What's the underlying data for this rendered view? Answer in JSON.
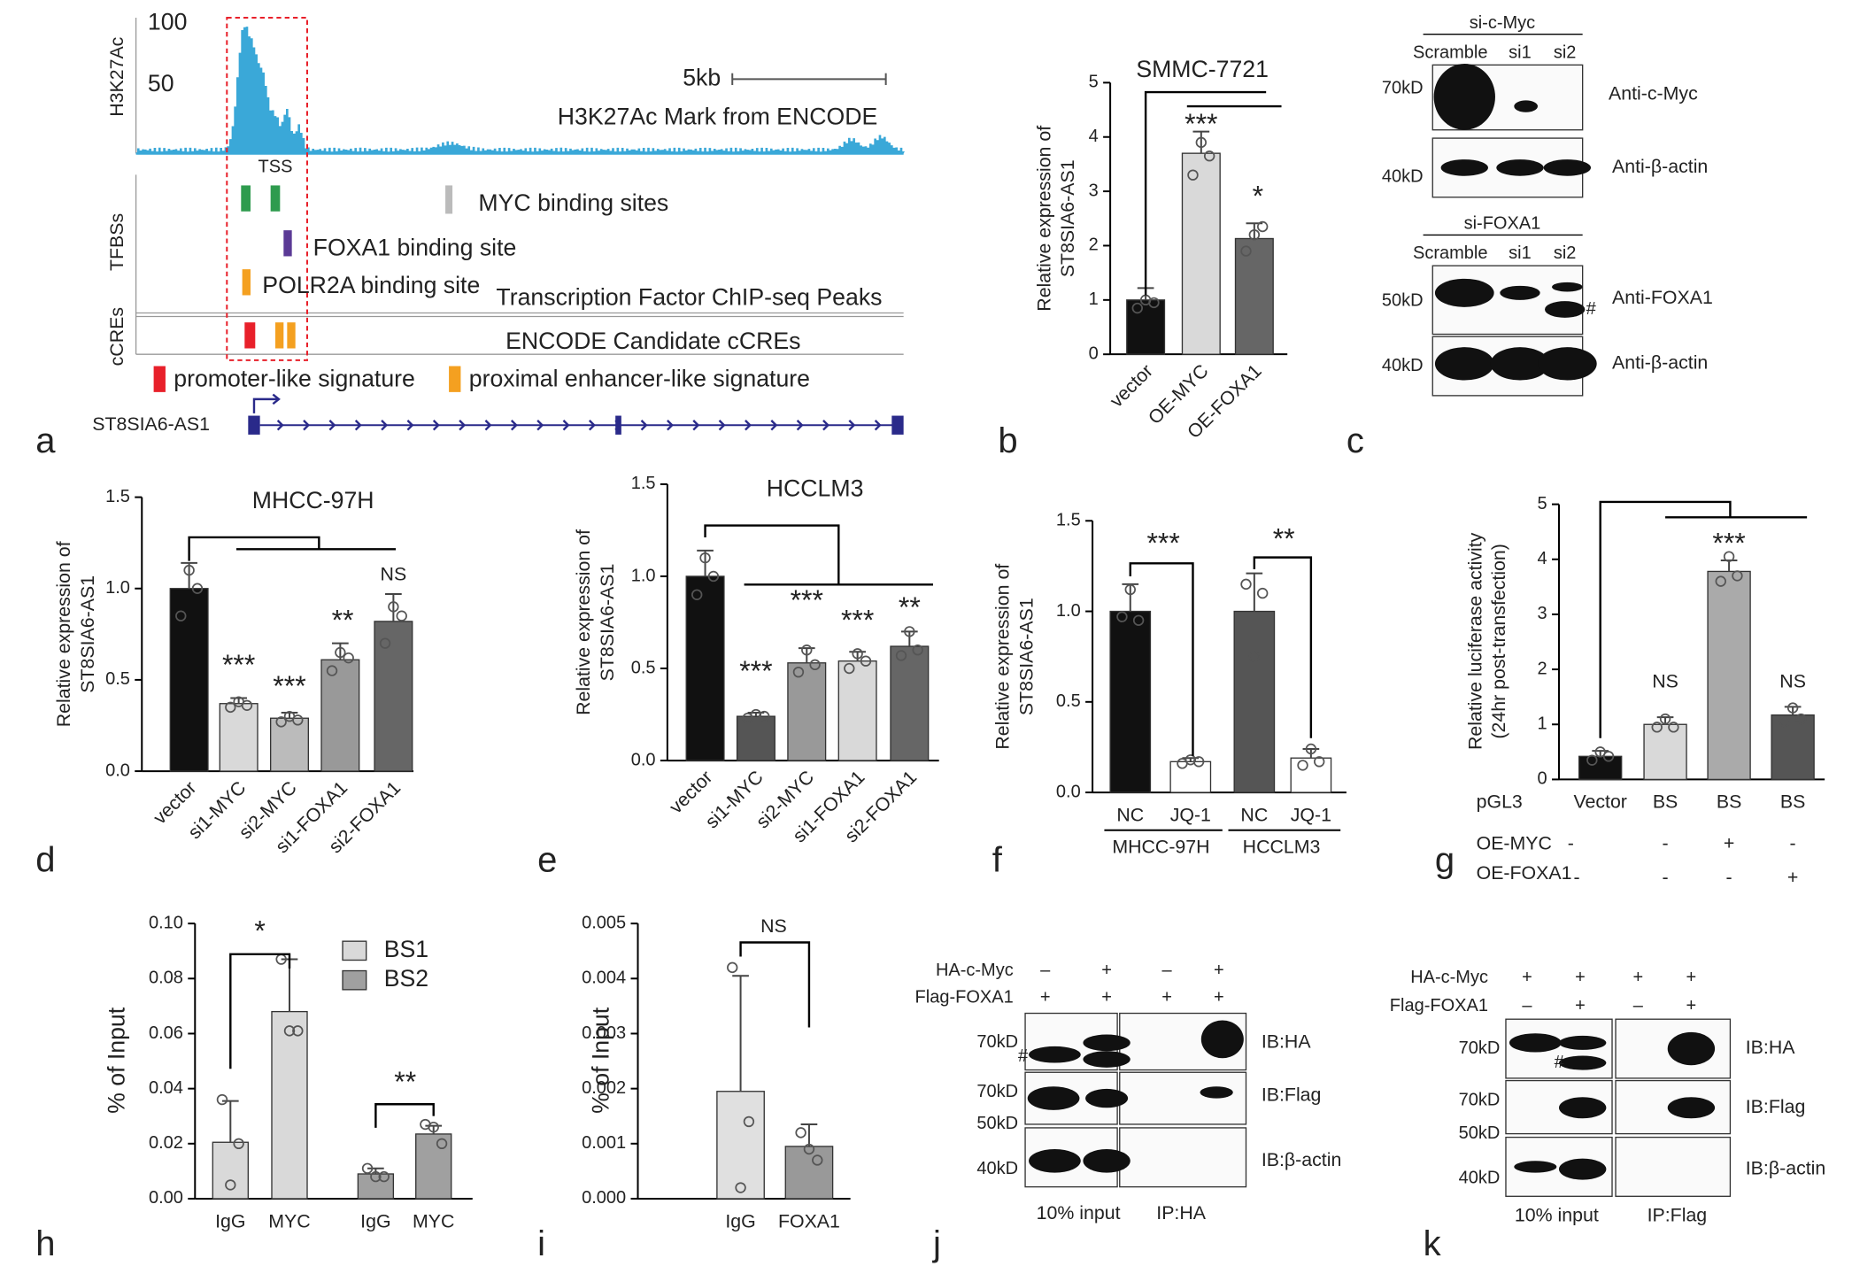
{
  "chart_data": [
    {
      "type": "bar",
      "title": "SMMC-7721",
      "y_label": [
        "Relative  expression of",
        "ST8SIA6-AS1"
      ],
      "categories": [
        "vector",
        "OE-MYC",
        "OE-FOXA1"
      ],
      "values": [
        1.0,
        3.7,
        2.13
      ],
      "errors": [
        0.22,
        0.4,
        0.28
      ],
      "points": [
        [
          0.85,
          1.0,
          0.95
        ],
        [
          3.3,
          3.9,
          3.65
        ],
        [
          1.9,
          2.2,
          2.35
        ]
      ],
      "colors": [
        "#111111",
        "#d9d9d9",
        "#666666"
      ],
      "significance": [
        null,
        "***",
        "*"
      ],
      "ylim": [
        0,
        5
      ],
      "yticks": [
        0,
        1,
        2,
        3,
        4,
        5
      ]
    },
    {
      "type": "bar",
      "title": "MHCC-97H",
      "y_label": [
        "Relative  expression of",
        "ST8SIA6-AS1"
      ],
      "categories": [
        "vector",
        "si1-MYC",
        "si2-MYC",
        "si1-FOXA1",
        "si2-FOXA1"
      ],
      "values": [
        1.0,
        0.37,
        0.29,
        0.61,
        0.82
      ],
      "errors": [
        0.14,
        0.03,
        0.03,
        0.09,
        0.15
      ],
      "points": [
        [
          0.85,
          1.1,
          1.0
        ],
        [
          0.35,
          0.38,
          0.36
        ],
        [
          0.27,
          0.3,
          0.28
        ],
        [
          0.55,
          0.65,
          0.62
        ],
        [
          0.7,
          0.9,
          0.85
        ]
      ],
      "colors": [
        "#111111",
        "#d9d9d9",
        "#bbbbbb",
        "#999999",
        "#666666"
      ],
      "significance": [
        null,
        "***",
        "***",
        "**",
        "NS"
      ],
      "ylim": [
        0,
        1.5
      ],
      "yticks": [
        {
          "value": 0,
          "label": "0.0"
        },
        0.5,
        {
          "value": 1,
          "label": "1.0"
        },
        1.5
      ]
    },
    {
      "type": "bar",
      "title": "HCCLM3",
      "y_label": [
        "Relative expression of",
        "ST8SIA6-AS1"
      ],
      "categories": [
        "vector",
        "si1-MYC",
        "si2-MYC",
        "si1-FOXA1",
        "si2-FOXA1"
      ],
      "values": [
        1.0,
        0.24,
        0.53,
        0.54,
        0.62
      ],
      "errors": [
        0.14,
        0.02,
        0.08,
        0.05,
        0.08
      ],
      "points": [
        [
          0.9,
          1.1,
          1.0
        ],
        [
          0.23,
          0.25,
          0.24
        ],
        [
          0.48,
          0.6,
          0.52
        ],
        [
          0.5,
          0.58,
          0.54
        ],
        [
          0.57,
          0.7,
          0.6
        ]
      ],
      "colors": [
        "#111111",
        "#555555",
        "#999999",
        "#d9d9d9",
        "#666666"
      ],
      "significance": [
        null,
        "***",
        "***",
        "***",
        "**"
      ],
      "ylim": [
        0,
        1.5
      ],
      "yticks": [
        {
          "value": 0,
          "label": "0.0"
        },
        0.5,
        {
          "value": 1,
          "label": "1.0"
        },
        1.5
      ]
    },
    {
      "type": "bar",
      "y_label": [
        "Relative  expression of",
        "ST8SIA6-AS1"
      ],
      "categories": [
        "NC",
        "JQ-1",
        "NC",
        "JQ-1"
      ],
      "groups": [
        "MHCC-97H",
        "HCCLM3"
      ],
      "values": [
        1.0,
        0.17,
        1.0,
        0.19
      ],
      "errors": [
        0.15,
        0.02,
        0.21,
        0.05
      ],
      "points": [
        [
          0.97,
          1.12,
          0.95
        ],
        [
          0.16,
          0.18,
          0.17
        ],
        [
          1.15,
          0.75,
          1.1
        ],
        [
          0.15,
          0.24,
          0.17
        ]
      ],
      "colors": [
        "#111111",
        "#ffffff",
        "#555555",
        "#ffffff"
      ],
      "significance": [
        "***",
        "**"
      ],
      "ylim": [
        0,
        1.5
      ],
      "yticks": [
        {
          "value": 0,
          "label": "0.0"
        },
        0.5,
        {
          "value": 1,
          "label": "1.0"
        },
        1.5
      ]
    },
    {
      "type": "bar",
      "y_label": [
        "Relative luciferase activity",
        "(24hr post-transfection)"
      ],
      "x_row_label": "pGL3",
      "categories": [
        "Vector",
        "BS",
        "BS",
        "BS"
      ],
      "values": [
        0.42,
        1.0,
        3.78,
        1.17
      ],
      "errors": [
        0.1,
        0.13,
        0.2,
        0.15
      ],
      "points": [
        [
          0.35,
          0.5,
          0.42
        ],
        [
          0.95,
          1.1,
          0.95
        ],
        [
          3.6,
          4.05,
          3.7
        ],
        [
          1.05,
          1.3,
          1.1
        ]
      ],
      "colors": [
        "#111111",
        "#d9d9d9",
        "#aaaaaa",
        "#555555"
      ],
      "significance": [
        null,
        "NS",
        "***",
        "NS"
      ],
      "treatments": [
        {
          "label": "OE-MYC",
          "signs": [
            "-",
            "-",
            "+",
            "-"
          ]
        },
        {
          "label": "OE-FOXA1",
          "signs": [
            "-",
            "-",
            "-",
            "+"
          ]
        }
      ],
      "ylim": [
        0,
        5
      ],
      "yticks": [
        0,
        1,
        2,
        3,
        4,
        5
      ]
    },
    {
      "type": "bar",
      "y_label": [
        "% of Input"
      ],
      "categories": [
        "IgG",
        "MYC"
      ],
      "series": [
        {
          "name": "BS1",
          "color": "#d9d9d9",
          "values": [
            0.0205,
            0.068
          ],
          "errors": [
            0.015,
            0.019
          ],
          "points": [
            [
              0.036,
              0.005,
              0.02
            ],
            [
              0.087,
              0.061,
              0.061
            ]
          ]
        },
        {
          "name": "BS2",
          "color": "#a0a0a0",
          "values": [
            0.009,
            0.0235
          ],
          "errors": [
            0.002,
            0.003
          ],
          "points": [
            [
              0.011,
              0.008,
              0.008
            ],
            [
              0.027,
              0.026,
              0.02
            ]
          ]
        }
      ],
      "significance": [
        "*",
        "**"
      ],
      "ylim": [
        0,
        0.1
      ],
      "yticks": [
        {
          "value": 0,
          "label": "0.00"
        },
        0.02,
        0.04,
        0.06,
        0.08,
        {
          "value": 0.1,
          "label": "0.10"
        }
      ]
    },
    {
      "type": "bar",
      "y_label": [
        "% of Input"
      ],
      "categories": [
        "IgG",
        "FOXA1"
      ],
      "values": [
        0.00195,
        0.00095
      ],
      "errors": [
        0.0021,
        0.0004
      ],
      "points": [
        [
          0.0042,
          0.0002,
          0.0014
        ],
        [
          0.0012,
          0.0009,
          0.0007
        ]
      ],
      "colors": [
        "#e0e0e0",
        "#999999"
      ],
      "significance": [
        "NS"
      ],
      "ylim": [
        0,
        0.005
      ],
      "yticks": [
        {
          "value": 0,
          "label": "0.000"
        },
        0.001,
        0.002,
        0.003,
        0.004,
        0.005
      ]
    }
  ],
  "panel_labels": [
    "a",
    "b",
    "c",
    "d",
    "e",
    "f",
    "g",
    "h",
    "i",
    "j",
    "k"
  ],
  "panel_a": {
    "track_label": "H3K27Ac",
    "scale_max": "100",
    "scale_mid": "50",
    "scale_bar": "5kb",
    "track_title": "H3K27Ac Mark from ENCODE",
    "tss": "TSS",
    "tfbs_label": "TFBSs",
    "myc": "MYC binding sites",
    "foxa1": "FOXA1 binding site",
    "polr2a": "POLR2A binding site",
    "tf_track": "Transcription Factor ChIP-seq Peaks",
    "ccre_label": "cCREs",
    "ccre_track": "ENCODE Candidate cCREs",
    "legend_promoter": "promoter-like signature",
    "legend_enhancer": "proximal enhancer-like signature",
    "gene": "ST8SIA6-AS1"
  },
  "panel_c": {
    "blot1": {
      "group": "si-c-Myc",
      "lanes": [
        "Scramble",
        "si1",
        "si2"
      ],
      "markers": [
        "70kD",
        "40kD"
      ],
      "antibodies": [
        "Anti-c-Myc",
        "Anti-β-actin"
      ]
    },
    "blot2": {
      "group": "si-FOXA1",
      "lanes": [
        "Scramble",
        "si1",
        "si2"
      ],
      "markers": [
        "50kD",
        "40kD"
      ],
      "antibodies": [
        "Anti-FOXA1",
        "Anti-β-actin"
      ],
      "note": "#"
    }
  },
  "panel_j": {
    "rows": [
      {
        "label": "HA-c-Myc",
        "signs": [
          "–",
          "+",
          "–",
          "+"
        ]
      },
      {
        "label": "Flag-FOXA1",
        "signs": [
          "+",
          "+",
          "+",
          "+"
        ]
      }
    ],
    "markers": [
      [
        "70kD"
      ],
      [
        "70kD",
        "50kD"
      ],
      [
        "40kD"
      ]
    ],
    "antibodies": [
      "IB:HA",
      "IB:Flag",
      "IB:β-actin"
    ],
    "note": "#",
    "groups": [
      "10% input",
      "IP:HA"
    ]
  },
  "panel_k": {
    "rows": [
      {
        "label": "HA-c-Myc",
        "signs": [
          "+",
          "+",
          "+",
          "+"
        ]
      },
      {
        "label": "Flag-FOXA1",
        "signs": [
          "–",
          "+",
          "–",
          "+"
        ]
      }
    ],
    "markers": [
      [
        "70kD"
      ],
      [
        "70kD",
        "50kD"
      ],
      [
        "40kD"
      ]
    ],
    "antibodies": [
      "IB:HA",
      "IB:Flag",
      "IB:β-actin"
    ],
    "note": "#",
    "groups": [
      "10% input",
      "IP:Flag"
    ]
  }
}
